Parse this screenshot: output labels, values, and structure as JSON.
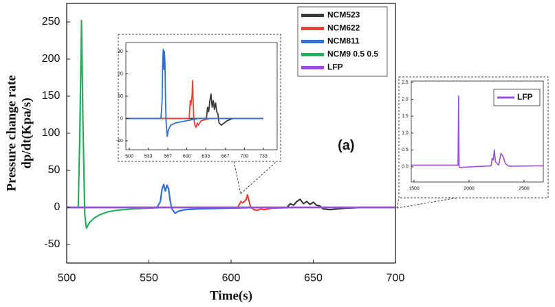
{
  "chart_data": [
    {
      "type": "line",
      "xlabel": "Time(s)",
      "ylabel": [
        "Pressure change rate",
        "dp/dt(Kpa/s)"
      ],
      "annotation": "(a)",
      "xlim": [
        500,
        700
      ],
      "ylim": [
        -75,
        275
      ],
      "xticks": [
        500,
        550,
        600,
        650,
        700
      ],
      "yticks": [
        -50,
        0,
        50,
        100,
        150,
        200,
        250
      ],
      "legend": "upper right",
      "series": [
        {
          "name": "NCM523",
          "color": "#3a3a3a",
          "x": [
            500,
            634,
            636,
            638,
            640,
            642,
            644,
            646,
            648,
            650,
            652,
            654,
            656,
            660,
            665,
            670,
            680,
            700
          ],
          "values": [
            0,
            0,
            5,
            3,
            8,
            11,
            5,
            8,
            4,
            7,
            3,
            2,
            -2,
            -3,
            -2,
            -1,
            0,
            0
          ]
        },
        {
          "name": "NCM622",
          "color": "#e8413c",
          "x": [
            500,
            604,
            606,
            607,
            609,
            610,
            611,
            612,
            614,
            616,
            618,
            620,
            625,
            640,
            700
          ],
          "values": [
            0,
            0,
            8,
            6,
            10,
            17,
            8,
            0,
            -3,
            -4,
            -2,
            -3,
            -1,
            0,
            0
          ]
        },
        {
          "name": "NCM811",
          "color": "#2f6fd6",
          "x": [
            500,
            555,
            557,
            558,
            559,
            560,
            561,
            562,
            563,
            564,
            566,
            568,
            572,
            580,
            600,
            620,
            700
          ],
          "values": [
            0,
            0,
            8,
            25,
            31,
            22,
            30,
            25,
            8,
            -2,
            -8,
            -5,
            -3,
            -2,
            -1,
            0,
            0
          ]
        },
        {
          "name": "NCM9 0.5 0.5",
          "color": "#2aaa5c",
          "x": [
            500,
            507,
            508,
            509,
            510,
            511,
            512,
            514,
            517,
            520,
            525,
            530,
            540,
            550,
            560,
            700
          ],
          "values": [
            0,
            0,
            100,
            252,
            100,
            -10,
            -28,
            -20,
            -14,
            -10,
            -6,
            -4,
            -2,
            -1,
            0,
            0
          ]
        },
        {
          "name": "LFP",
          "color": "#9b4de0",
          "x": [
            500,
            700
          ],
          "values": [
            0,
            0
          ]
        }
      ]
    },
    {
      "type": "line",
      "xlim": [
        494,
        757
      ],
      "ylim": [
        -14,
        34
      ],
      "xticks": [
        500,
        533,
        567,
        600,
        633,
        667,
        700,
        733
      ],
      "yticks": [
        -10,
        0,
        10,
        20,
        30
      ],
      "series": [
        {
          "color": "#3a3a3a",
          "x": [
            494,
            634,
            636,
            638,
            640,
            642,
            644,
            646,
            648,
            650,
            652,
            654,
            656,
            660,
            665,
            670,
            680,
            733
          ],
          "values": [
            0,
            0,
            5,
            3,
            8,
            11,
            5,
            8,
            4,
            7,
            3,
            2,
            -2,
            -3,
            -2,
            -1,
            0,
            0
          ]
        },
        {
          "color": "#e8413c",
          "x": [
            494,
            604,
            606,
            607,
            609,
            610,
            611,
            612,
            614,
            616,
            618,
            620,
            625,
            640,
            733
          ],
          "values": [
            0,
            0,
            8,
            6,
            10,
            17,
            8,
            0,
            -3,
            -4,
            -2,
            -3,
            -1,
            0,
            0
          ]
        },
        {
          "color": "#2f6fd6",
          "x": [
            494,
            555,
            557,
            558,
            559,
            560,
            561,
            562,
            563,
            564,
            566,
            568,
            572,
            580,
            600,
            620,
            733
          ],
          "values": [
            0,
            0,
            8,
            25,
            31,
            22,
            30,
            25,
            8,
            -2,
            -8,
            -5,
            -3,
            -2,
            -1,
            0,
            0
          ]
        }
      ]
    },
    {
      "type": "line",
      "xlim": [
        1475,
        2675
      ],
      "ylim": [
        -0.45,
        2.54
      ],
      "xticks": [
        1500,
        2000,
        2500
      ],
      "yticks": [
        {
          "value": 0,
          "label": "0.0"
        },
        {
          "value": 0.5,
          "label": "0.5"
        },
        {
          "value": 1,
          "label": "1.0"
        },
        {
          "value": 1.5,
          "label": "1.5"
        },
        {
          "value": 2,
          "label": "2.0"
        },
        {
          "value": 2.5,
          "label": "2.5"
        }
      ],
      "legend": "upper right",
      "series": [
        {
          "name": "LFP",
          "color": "#9b4de0",
          "x": [
            1475,
            1900,
            1905,
            1910,
            1915,
            2200,
            2210,
            2220,
            2230,
            2240,
            2270,
            2290,
            2310,
            2330,
            2360,
            2675
          ],
          "values": [
            0.05,
            0.05,
            2.1,
            0,
            -0.02,
            0.03,
            0.25,
            0.2,
            0.5,
            0.15,
            0.05,
            0.4,
            0.3,
            0.1,
            0.02,
            0.03
          ]
        }
      ]
    }
  ]
}
